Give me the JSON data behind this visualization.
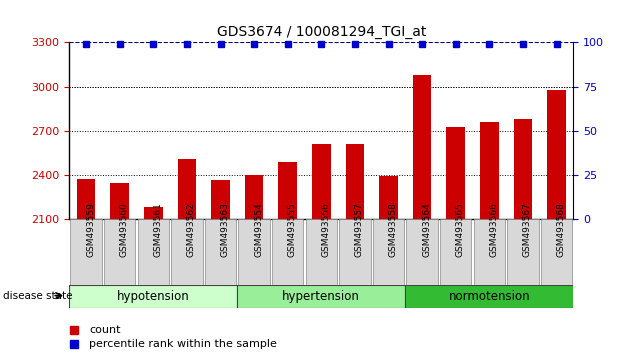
{
  "title": "GDS3674 / 100081294_TGI_at",
  "samples": [
    "GSM493559",
    "GSM493560",
    "GSM493561",
    "GSM493562",
    "GSM493563",
    "GSM493554",
    "GSM493555",
    "GSM493556",
    "GSM493557",
    "GSM493558",
    "GSM493564",
    "GSM493565",
    "GSM493566",
    "GSM493567",
    "GSM493568"
  ],
  "counts": [
    2375,
    2345,
    2185,
    2510,
    2370,
    2400,
    2490,
    2610,
    2610,
    2395,
    3080,
    2730,
    2760,
    2780,
    2980
  ],
  "percentile": [
    100,
    100,
    100,
    100,
    100,
    100,
    100,
    100,
    100,
    100,
    100,
    100,
    100,
    100,
    100
  ],
  "groups": [
    {
      "label": "hypotension",
      "start": 0,
      "end": 5,
      "color": "#ccffcc"
    },
    {
      "label": "hypertension",
      "start": 5,
      "end": 10,
      "color": "#99ee99"
    },
    {
      "label": "normotension",
      "start": 10,
      "end": 15,
      "color": "#33bb33"
    }
  ],
  "ylim_left": [
    2100,
    3300
  ],
  "ylim_right": [
    0,
    100
  ],
  "yticks_left": [
    2100,
    2400,
    2700,
    3000,
    3300
  ],
  "yticks_right": [
    0,
    25,
    50,
    75,
    100
  ],
  "bar_color": "#cc0000",
  "dot_color": "#0000cc",
  "bar_width": 0.55,
  "tick_label_color_left": "#cc0000",
  "tick_label_color_right": "#0000cc",
  "legend_count_color": "#cc0000",
  "legend_pct_color": "#0000cc",
  "fig_width": 6.3,
  "fig_height": 3.54,
  "dpi": 100
}
